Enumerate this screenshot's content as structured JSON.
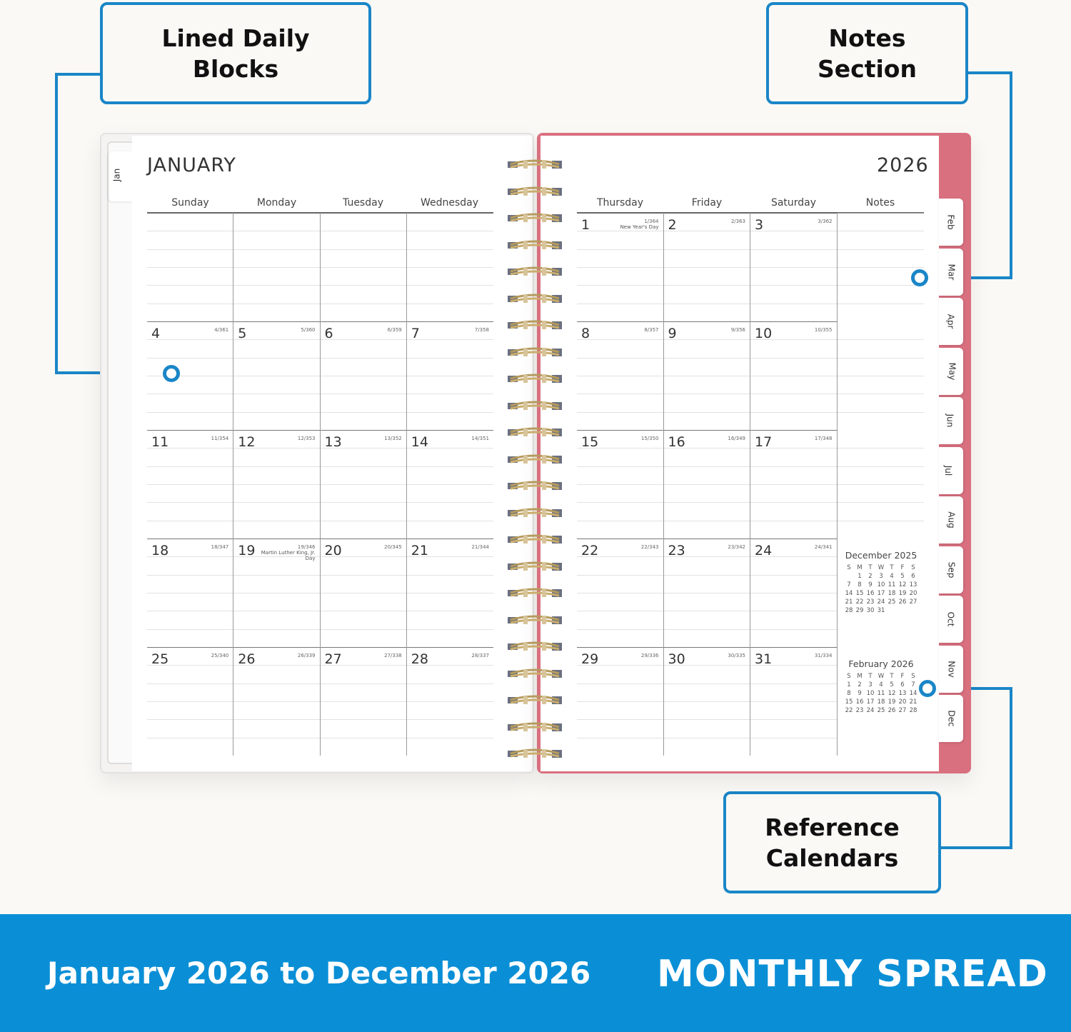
{
  "callouts": {
    "daily": "Lined Daily Blocks",
    "notes": "Notes Section",
    "reference": "Reference Calendars"
  },
  "colors": {
    "accent": "#1a86c7",
    "banner": "#0a8fd6",
    "cover": "#d9707f"
  },
  "planner": {
    "month": "JANUARY",
    "year": "2026",
    "left_days": [
      "Sunday",
      "Monday",
      "Tuesday",
      "Wednesday"
    ],
    "right_days": [
      "Thursday",
      "Friday",
      "Saturday",
      "Notes"
    ],
    "first_tab": "Jan",
    "tabs": [
      "Feb",
      "Mar",
      "Apr",
      "May",
      "Jun",
      "Jul",
      "Aug",
      "Sep",
      "Oct",
      "Nov",
      "Dec"
    ],
    "holidays": {
      "1": "New Year's Day",
      "19": "Martin Luther King, Jr. Day"
    },
    "days_in_month": 31,
    "start_weekday": 4,
    "days_in_year": 365
  },
  "mini_calendars": [
    {
      "title": "December 2025",
      "headers": [
        "S",
        "M",
        "T",
        "W",
        "T",
        "F",
        "S"
      ],
      "weeks": [
        [
          "",
          "1",
          "2",
          "3",
          "4",
          "5",
          "6"
        ],
        [
          "7",
          "8",
          "9",
          "10",
          "11",
          "12",
          "13"
        ],
        [
          "14",
          "15",
          "16",
          "17",
          "18",
          "19",
          "20"
        ],
        [
          "21",
          "22",
          "23",
          "24",
          "25",
          "26",
          "27"
        ],
        [
          "28",
          "29",
          "30",
          "31",
          "",
          "",
          ""
        ]
      ]
    },
    {
      "title": "February 2026",
      "headers": [
        "S",
        "M",
        "T",
        "W",
        "T",
        "F",
        "S"
      ],
      "weeks": [
        [
          "1",
          "2",
          "3",
          "4",
          "5",
          "6",
          "7"
        ],
        [
          "8",
          "9",
          "10",
          "11",
          "12",
          "13",
          "14"
        ],
        [
          "15",
          "16",
          "17",
          "18",
          "19",
          "20",
          "21"
        ],
        [
          "22",
          "23",
          "24",
          "25",
          "26",
          "27",
          "28"
        ]
      ]
    }
  ],
  "banner": {
    "range": "January 2026 to December 2026",
    "title": "MONTHLY SPREAD"
  }
}
